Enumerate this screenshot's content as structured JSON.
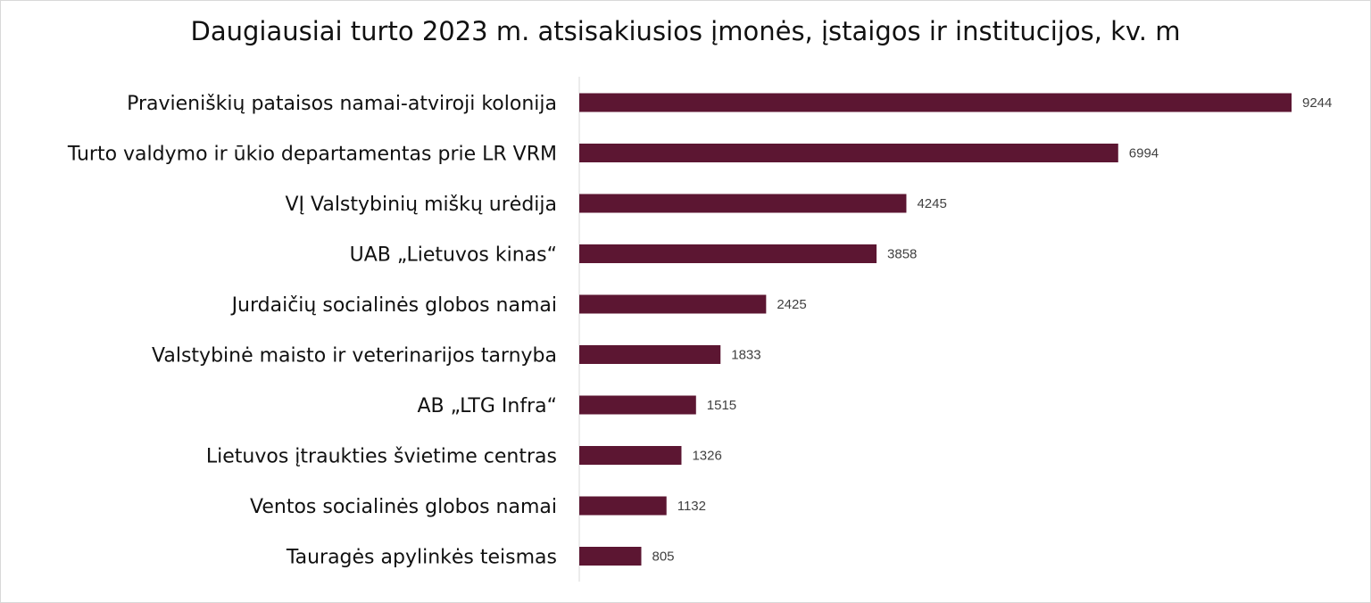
{
  "chart_data": {
    "type": "bar",
    "orientation": "horizontal",
    "title": "Daugiausiai turto 2023 m. atsisakiusios įmonės, įstaigos ir institucijos, kv. m",
    "categories": [
      "Pravieniškių pataisos namai-atviroji kolonija",
      "Turto valdymo ir ūkio departamentas prie LR VRM",
      "VĮ Valstybinių miškų urėdija",
      "UAB „Lietuvos kinas“",
      "Jurdaičių socialinės globos namai",
      "Valstybinė maisto ir veterinarijos tarnyba",
      "AB „LTG Infra“",
      "Lietuvos įtraukties švietime centras",
      "Ventos socialinės globos namai",
      "Tauragės apylinkės teismas"
    ],
    "values": [
      9244,
      6994,
      4245,
      3858,
      2425,
      1833,
      1515,
      1326,
      1132,
      805
    ],
    "xlim": [
      0,
      9244
    ],
    "grid": false,
    "legend": "none",
    "bar_color": "#5c1632",
    "data_labels": true
  }
}
